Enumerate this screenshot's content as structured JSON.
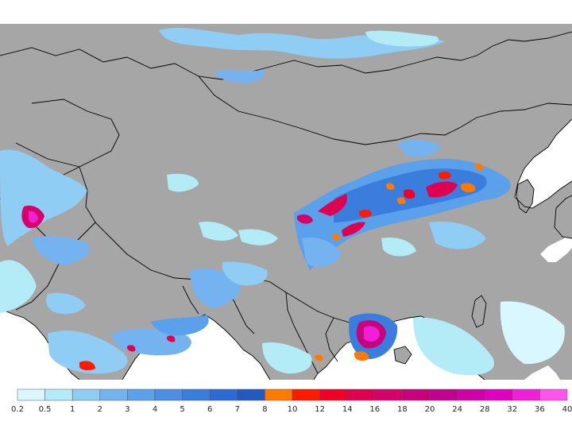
{
  "map": {
    "land_color": "#a6a6a6",
    "sea_color": "#ffffff",
    "border_color": "#000000"
  },
  "legend": {
    "labels": [
      "0.2",
      "0.5",
      "1",
      "2",
      "3",
      "4",
      "5",
      "6",
      "7",
      "8",
      "10",
      "12",
      "14",
      "16",
      "18",
      "20",
      "24",
      "28",
      "32",
      "36",
      "40"
    ],
    "colors": [
      "#d9f7ff",
      "#b3ecf6",
      "#90cdf4",
      "#74b3f0",
      "#5aa0ea",
      "#4a8ee6",
      "#3b7ddd",
      "#2c6bd4",
      "#2459c0",
      "#ff7a00",
      "#ff1a00",
      "#f00028",
      "#e00050",
      "#d6006a",
      "#c8007c",
      "#c20090",
      "#d000a8",
      "#e000c0",
      "#f020d8",
      "#ff55ee"
    ]
  }
}
